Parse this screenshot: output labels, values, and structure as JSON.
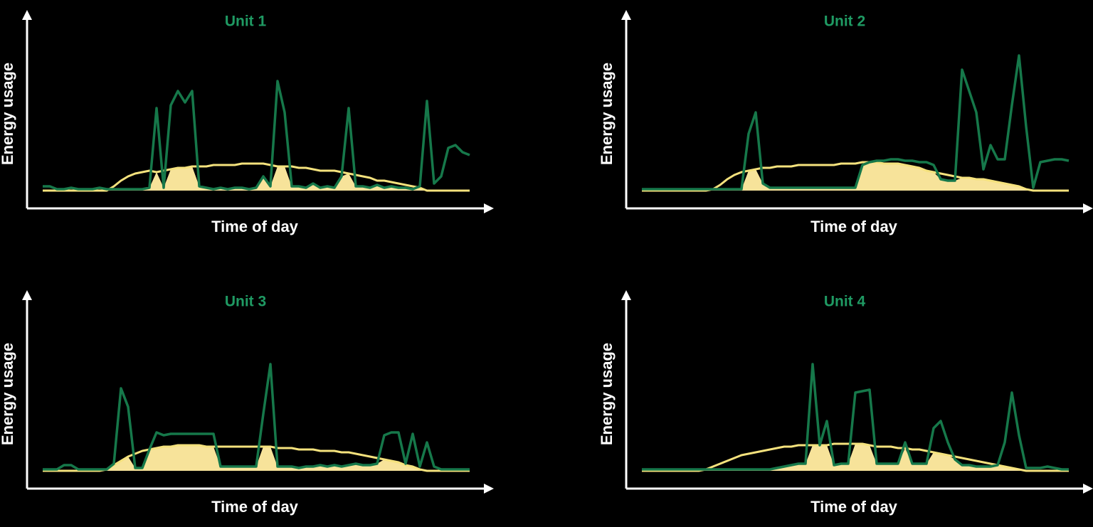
{
  "chart_data": [
    {
      "type": "line",
      "title": "Unit 1",
      "xlabel": "Time of day",
      "ylabel": "Energy usage",
      "ylim": [
        0,
        100
      ],
      "overlap_color": "#f7e39a",
      "series": [
        {
          "color": "#16784a",
          "values": [
            3,
            3,
            1,
            1,
            2,
            1,
            1,
            1,
            2,
            1,
            1,
            1,
            1,
            1,
            1,
            2,
            58,
            2,
            60,
            70,
            62,
            70,
            3,
            2,
            1,
            2,
            1,
            2,
            2,
            1,
            2,
            10,
            3,
            77,
            55,
            3,
            3,
            2,
            5,
            2,
            3,
            2,
            10,
            58,
            3,
            3,
            2,
            4,
            2,
            3,
            2,
            2,
            1,
            3,
            63,
            5,
            10,
            30,
            32,
            27,
            25
          ]
        },
        {
          "color": "#f5e27d",
          "values": [
            0,
            0,
            0,
            0,
            0,
            0,
            0,
            0,
            0,
            0,
            3,
            7,
            10,
            12,
            13,
            14,
            13,
            14,
            15,
            16,
            16,
            17,
            17,
            17,
            18,
            18,
            18,
            18,
            19,
            19,
            19,
            19,
            18,
            17,
            17,
            17,
            16,
            16,
            15,
            14,
            14,
            14,
            13,
            12,
            11,
            10,
            9,
            7,
            7,
            6,
            5,
            4,
            3,
            2,
            0,
            0,
            0,
            0,
            0,
            0,
            0
          ]
        }
      ]
    },
    {
      "type": "line",
      "title": "Unit 2",
      "xlabel": "Time of day",
      "ylabel": "Energy usage",
      "ylim": [
        0,
        100
      ],
      "overlap_color": "#f7e39a",
      "series": [
        {
          "color": "#16784a",
          "values": [
            1,
            1,
            1,
            1,
            1,
            1,
            1,
            1,
            1,
            1,
            1,
            1,
            1,
            1,
            1,
            40,
            55,
            5,
            2,
            2,
            2,
            2,
            2,
            2,
            2,
            2,
            2,
            2,
            2,
            2,
            2,
            18,
            20,
            21,
            21,
            22,
            22,
            21,
            21,
            20,
            20,
            18,
            8,
            7,
            7,
            85,
            70,
            55,
            15,
            32,
            22,
            22,
            60,
            95,
            45,
            2,
            20,
            21,
            22,
            22,
            21
          ]
        },
        {
          "color": "#f5e27d",
          "values": [
            0,
            0,
            0,
            0,
            0,
            0,
            0,
            0,
            0,
            0,
            1,
            4,
            8,
            11,
            13,
            14,
            15,
            16,
            16,
            17,
            17,
            17,
            18,
            18,
            18,
            18,
            18,
            18,
            19,
            19,
            19,
            20,
            20,
            20,
            19,
            19,
            19,
            18,
            17,
            16,
            14,
            13,
            12,
            11,
            10,
            9,
            9,
            8,
            8,
            7,
            6,
            5,
            4,
            3,
            1,
            0,
            0,
            0,
            0,
            0,
            0
          ]
        }
      ]
    },
    {
      "type": "line",
      "title": "Unit 3",
      "xlabel": "Time of day",
      "ylabel": "Energy usage",
      "ylim": [
        0,
        100
      ],
      "overlap_color": "#f7e39a",
      "series": [
        {
          "color": "#16784a",
          "values": [
            1,
            1,
            1,
            4,
            4,
            1,
            1,
            1,
            1,
            1,
            5,
            58,
            45,
            2,
            2,
            15,
            27,
            25,
            26,
            26,
            26,
            26,
            26,
            26,
            26,
            3,
            3,
            3,
            3,
            3,
            3,
            40,
            75,
            3,
            3,
            3,
            2,
            3,
            3,
            4,
            3,
            4,
            3,
            4,
            5,
            4,
            4,
            5,
            25,
            27,
            27,
            5,
            26,
            3,
            20,
            3,
            1,
            1,
            1,
            1,
            1
          ]
        },
        {
          "color": "#f5e27d",
          "values": [
            0,
            0,
            0,
            0,
            0,
            0,
            0,
            0,
            0,
            1,
            4,
            7,
            10,
            12,
            14,
            15,
            16,
            17,
            17,
            18,
            18,
            18,
            18,
            17,
            17,
            17,
            17,
            17,
            17,
            17,
            17,
            17,
            17,
            16,
            16,
            16,
            15,
            15,
            15,
            14,
            14,
            14,
            13,
            13,
            12,
            11,
            10,
            9,
            8,
            7,
            6,
            4,
            3,
            1,
            0,
            0,
            0,
            0,
            0,
            0,
            0
          ]
        }
      ]
    },
    {
      "type": "line",
      "title": "Unit 4",
      "xlabel": "Time of day",
      "ylabel": "Energy usage",
      "ylim": [
        0,
        100
      ],
      "overlap_color": "#f7e39a",
      "series": [
        {
          "color": "#16784a",
          "values": [
            1,
            1,
            1,
            1,
            1,
            1,
            1,
            1,
            1,
            1,
            1,
            1,
            1,
            1,
            1,
            1,
            1,
            1,
            1,
            2,
            3,
            4,
            5,
            5,
            75,
            18,
            35,
            4,
            5,
            5,
            55,
            56,
            57,
            5,
            5,
            5,
            5,
            20,
            5,
            5,
            5,
            30,
            35,
            20,
            8,
            4,
            4,
            3,
            3,
            3,
            4,
            20,
            55,
            25,
            2,
            2,
            2,
            3,
            2,
            1,
            1
          ]
        },
        {
          "color": "#f5e27d",
          "values": [
            0,
            0,
            0,
            0,
            0,
            0,
            0,
            0,
            0,
            1,
            3,
            5,
            7,
            9,
            11,
            12,
            13,
            14,
            15,
            16,
            17,
            17,
            18,
            18,
            18,
            18,
            18,
            19,
            19,
            19,
            19,
            19,
            18,
            17,
            17,
            17,
            16,
            16,
            15,
            15,
            14,
            13,
            12,
            11,
            10,
            9,
            8,
            7,
            6,
            5,
            4,
            3,
            2,
            1,
            0,
            0,
            0,
            0,
            0,
            0,
            0
          ]
        }
      ]
    }
  ]
}
